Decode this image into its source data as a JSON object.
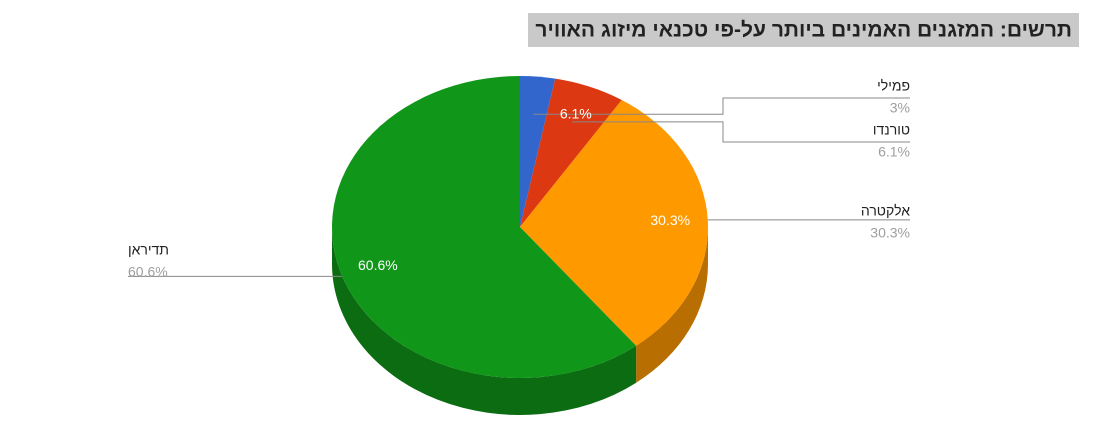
{
  "chart_data": {
    "type": "pie",
    "title": "תרשים: המזגנים האמינים ביותר על-פי טכנאי מיזוג האוויר",
    "three_d": true,
    "categories": [
      "פמילי",
      "טורנדו",
      "אלקטרה",
      "תדיראן"
    ],
    "values": [
      3,
      6.1,
      30.3,
      60.6
    ],
    "value_labels": [
      "3%",
      "6.1%",
      "30.3%",
      "60.6%"
    ],
    "colors": [
      "#3366cc",
      "#dc3912",
      "#ff9900",
      "#109618"
    ]
  }
}
